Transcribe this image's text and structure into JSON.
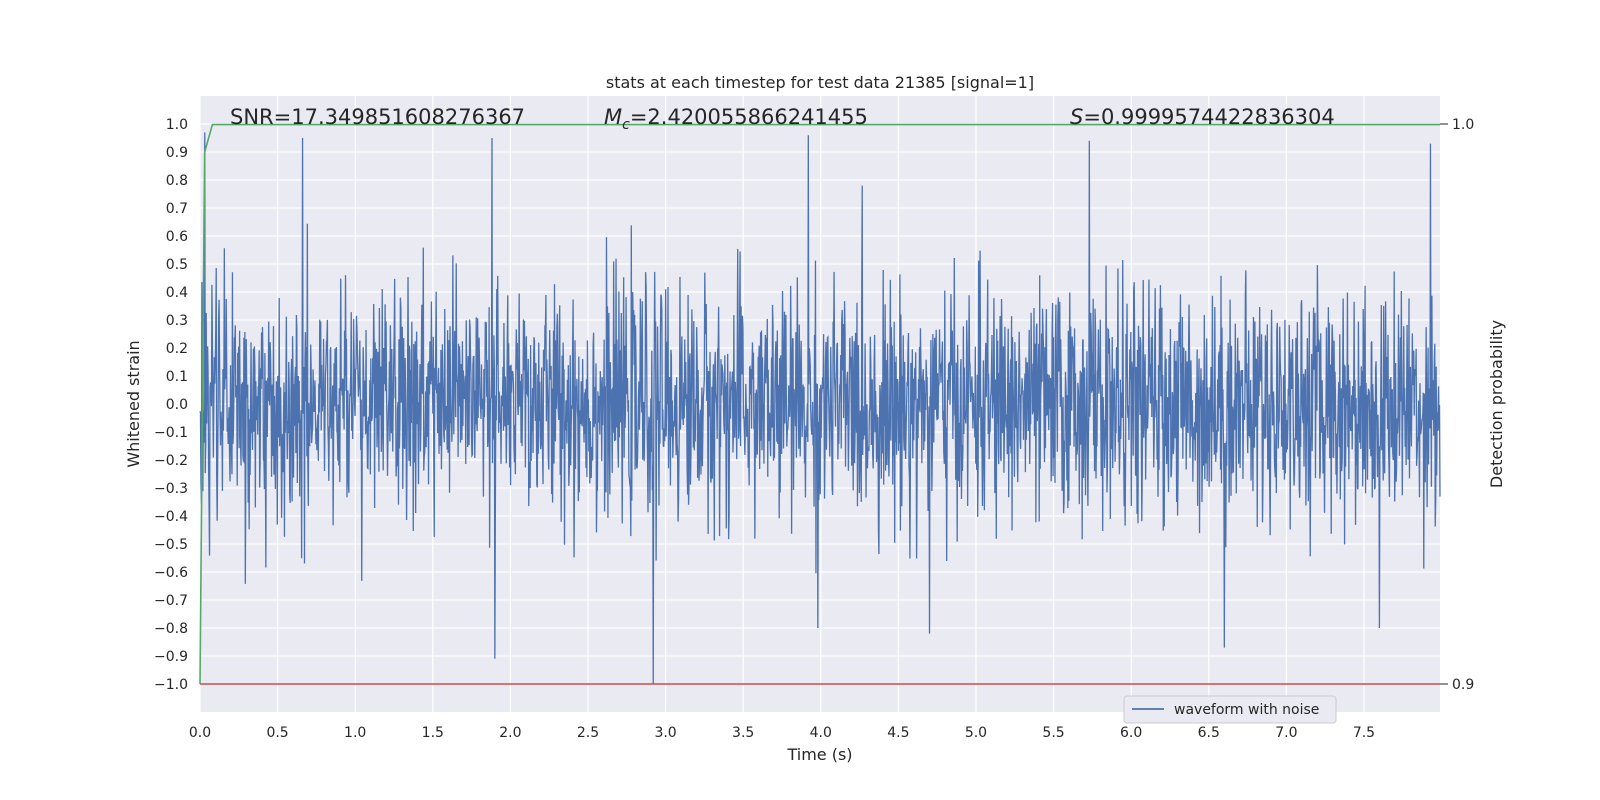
{
  "chart_data": {
    "type": "line",
    "title": "stats at each timestep for test data 21385 [signal=1]",
    "xlabel": "Time (s)",
    "ylabel": "Whitened strain",
    "y2label": "Detection probability",
    "xlim": [
      0.0,
      7.99
    ],
    "ylim": [
      -1.1,
      1.1
    ],
    "y2lim": [
      0.9,
      1.0
    ],
    "x_ticks": [
      "0.0",
      "0.5",
      "1.0",
      "1.5",
      "2.0",
      "2.5",
      "3.0",
      "3.5",
      "4.0",
      "4.5",
      "5.0",
      "5.5",
      "6.0",
      "6.5",
      "7.0",
      "7.5"
    ],
    "y_ticks": [
      "1.0",
      "0.9",
      "0.8",
      "0.7",
      "0.6",
      "0.5",
      "0.4",
      "0.3",
      "0.2",
      "0.1",
      "0.0",
      "−0.1",
      "−0.2",
      "−0.3",
      "−0.4",
      "−0.5",
      "−0.6",
      "−0.7",
      "−0.8",
      "−0.9",
      "−1.0"
    ],
    "y2_ticks": [
      "1.0",
      "0.9"
    ],
    "grid": true,
    "legend_position": "lower-right",
    "annotations": {
      "snr": "SNR=17.349851608276367",
      "mc_symbol": "M",
      "mc_sub": "c",
      "mc_value": "=2.420055866241455",
      "s_symbol": "S",
      "s_value": "=0.9999574422836304"
    },
    "series": [
      {
        "name": "waveform with noise",
        "color": "#4c72b0",
        "description_values": "dense noisy whitened strain, approximately uniform amplitude between -0.6 and 0.6 with spikes up to 0.96 and down to -1.0",
        "peaks": [
          [
            0.03,
            0.97
          ],
          [
            0.66,
            0.95
          ],
          [
            1.88,
            0.95
          ],
          [
            3.92,
            0.96
          ],
          [
            5.73,
            0.94
          ],
          [
            7.93,
            0.93
          ],
          [
            2.92,
            -1.0
          ],
          [
            1.9,
            -0.91
          ],
          [
            6.6,
            -0.87
          ],
          [
            7.6,
            -0.8
          ],
          [
            4.7,
            -0.82
          ],
          [
            3.98,
            -0.8
          ]
        ]
      },
      {
        "name": "",
        "color": "#55a868",
        "axis": "y2",
        "points": [
          [
            0.0,
            0.9
          ],
          [
            0.03,
            0.995
          ],
          [
            0.08,
            0.9999
          ],
          [
            7.99,
            0.9999
          ]
        ]
      },
      {
        "name": "",
        "color": "#c44e52",
        "axis": "y2",
        "points": [
          [
            0.0,
            0.9
          ],
          [
            7.99,
            0.9
          ]
        ]
      }
    ]
  }
}
